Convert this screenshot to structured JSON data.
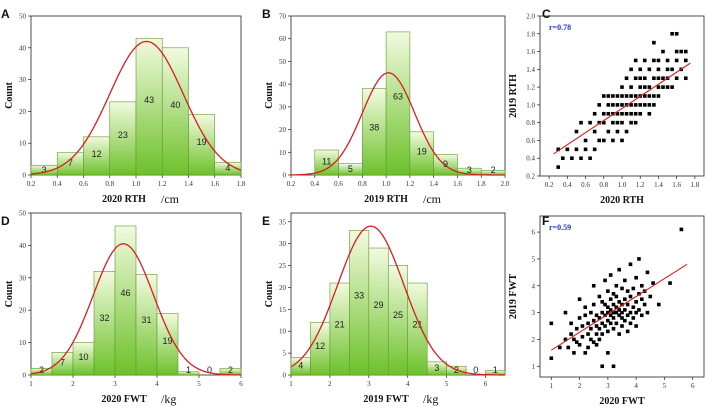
{
  "chart_data": [
    {
      "panel": "A",
      "type": "bar",
      "x": [
        0.3,
        0.5,
        0.7,
        0.9,
        1.1,
        1.3,
        1.5,
        1.7
      ],
      "values": [
        3,
        7,
        12,
        23,
        43,
        40,
        19,
        4
      ],
      "bin_width": 0.2,
      "xlim": [
        0.2,
        1.8
      ],
      "ylim": [
        0,
        50
      ],
      "xticks": [
        "0.2",
        "0.4",
        "0.6",
        "0.8",
        "1.0",
        "1.2",
        "1.4",
        "1.6",
        "1.8"
      ],
      "yticks": [
        "0",
        "10",
        "20",
        "30",
        "40",
        "50"
      ],
      "xlabel": "2020 RTH",
      "unit": "/cm",
      "ylabel": "Count",
      "fit_curve": {
        "mean": 1.08,
        "sd": 0.28,
        "peak": 42
      }
    },
    {
      "panel": "B",
      "type": "bar",
      "x": [
        0.5,
        0.7,
        0.9,
        1.1,
        1.3,
        1.5,
        1.7,
        1.9
      ],
      "values": [
        11,
        5,
        38,
        63,
        19,
        9,
        3,
        2
      ],
      "bin_width": 0.2,
      "xlim": [
        0.2,
        2.0
      ],
      "ylim": [
        0,
        70
      ],
      "xticks": [
        "0.2",
        "0.4",
        "0.6",
        "0.8",
        "1.0",
        "1.2",
        "1.4",
        "1.6",
        "1.8",
        "2.0"
      ],
      "yticks": [
        "0",
        "10",
        "20",
        "30",
        "40",
        "50",
        "60",
        "70"
      ],
      "xlabel": "2019 RTH",
      "unit": "/cm",
      "ylabel": "Count",
      "fit_curve": {
        "mean": 1.02,
        "sd": 0.22,
        "peak": 45
      }
    },
    {
      "panel": "C",
      "type": "scatter",
      "r_text": "r=0.78",
      "xlim": [
        0.1,
        1.9
      ],
      "ylim": [
        0.2,
        2.0
      ],
      "xticks": [
        "0.2",
        "0.4",
        "0.6",
        "0.8",
        "1.0",
        "1.2",
        "1.4",
        "1.6",
        "1.8"
      ],
      "yticks": [
        "0.2",
        "0.4",
        "0.6",
        "0.8",
        "1.0",
        "1.2",
        "1.4",
        "1.6",
        "1.8",
        "2.0"
      ],
      "xlabel": "2020 RTH",
      "ylabel": "2019 RTH",
      "fit_line": [
        [
          0.25,
          0.45
        ],
        [
          1.75,
          1.47
        ]
      ],
      "points": [
        [
          0.3,
          0.3
        ],
        [
          0.3,
          0.5
        ],
        [
          0.35,
          0.4
        ],
        [
          0.4,
          0.5
        ],
        [
          0.45,
          0.4
        ],
        [
          0.5,
          0.5
        ],
        [
          0.5,
          0.7
        ],
        [
          0.55,
          0.4
        ],
        [
          0.55,
          0.8
        ],
        [
          0.6,
          0.5
        ],
        [
          0.6,
          0.6
        ],
        [
          0.65,
          0.4
        ],
        [
          0.65,
          0.8
        ],
        [
          0.7,
          0.5
        ],
        [
          0.7,
          0.7
        ],
        [
          0.7,
          0.9
        ],
        [
          0.75,
          0.6
        ],
        [
          0.75,
          0.8
        ],
        [
          0.75,
          1.0
        ],
        [
          0.8,
          0.6
        ],
        [
          0.8,
          0.8
        ],
        [
          0.8,
          0.9
        ],
        [
          0.8,
          1.1
        ],
        [
          0.85,
          0.7
        ],
        [
          0.85,
          0.9
        ],
        [
          0.85,
          1.0
        ],
        [
          0.85,
          1.1
        ],
        [
          0.9,
          0.6
        ],
        [
          0.9,
          0.8
        ],
        [
          0.9,
          0.9
        ],
        [
          0.9,
          1.0
        ],
        [
          0.9,
          1.1
        ],
        [
          0.95,
          0.7
        ],
        [
          0.95,
          0.8
        ],
        [
          0.95,
          0.9
        ],
        [
          0.95,
          1.0
        ],
        [
          0.95,
          1.1
        ],
        [
          1.0,
          0.6
        ],
        [
          1.0,
          0.8
        ],
        [
          1.0,
          0.9
        ],
        [
          1.0,
          1.0
        ],
        [
          1.0,
          1.1
        ],
        [
          1.0,
          1.2
        ],
        [
          1.05,
          0.7
        ],
        [
          1.05,
          0.9
        ],
        [
          1.05,
          1.0
        ],
        [
          1.05,
          1.1
        ],
        [
          1.05,
          1.3
        ],
        [
          1.1,
          0.8
        ],
        [
          1.1,
          0.9
        ],
        [
          1.1,
          1.0
        ],
        [
          1.1,
          1.1
        ],
        [
          1.1,
          1.2
        ],
        [
          1.1,
          1.4
        ],
        [
          1.15,
          0.8
        ],
        [
          1.15,
          0.9
        ],
        [
          1.15,
          1.0
        ],
        [
          1.15,
          1.1
        ],
        [
          1.15,
          1.3
        ],
        [
          1.15,
          1.5
        ],
        [
          1.2,
          0.9
        ],
        [
          1.2,
          1.0
        ],
        [
          1.2,
          1.1
        ],
        [
          1.2,
          1.2
        ],
        [
          1.2,
          1.3
        ],
        [
          1.2,
          1.4
        ],
        [
          1.25,
          1.0
        ],
        [
          1.25,
          1.1
        ],
        [
          1.25,
          1.2
        ],
        [
          1.25,
          1.3
        ],
        [
          1.25,
          1.5
        ],
        [
          1.3,
          0.9
        ],
        [
          1.3,
          1.0
        ],
        [
          1.3,
          1.1
        ],
        [
          1.3,
          1.2
        ],
        [
          1.3,
          1.4
        ],
        [
          1.35,
          1.0
        ],
        [
          1.35,
          1.1
        ],
        [
          1.35,
          1.3
        ],
        [
          1.35,
          1.5
        ],
        [
          1.35,
          1.7
        ],
        [
          1.4,
          1.1
        ],
        [
          1.4,
          1.2
        ],
        [
          1.4,
          1.3
        ],
        [
          1.4,
          1.4
        ],
        [
          1.4,
          1.5
        ],
        [
          1.45,
          1.2
        ],
        [
          1.45,
          1.3
        ],
        [
          1.45,
          1.6
        ],
        [
          1.5,
          1.2
        ],
        [
          1.5,
          1.3
        ],
        [
          1.5,
          1.4
        ],
        [
          1.5,
          1.5
        ],
        [
          1.55,
          1.2
        ],
        [
          1.55,
          1.4
        ],
        [
          1.55,
          1.8
        ],
        [
          1.6,
          1.3
        ],
        [
          1.6,
          1.5
        ],
        [
          1.6,
          1.6
        ],
        [
          1.6,
          1.8
        ],
        [
          1.65,
          1.4
        ],
        [
          1.65,
          1.6
        ],
        [
          1.7,
          1.3
        ],
        [
          1.7,
          1.5
        ],
        [
          1.7,
          1.6
        ]
      ]
    },
    {
      "panel": "D",
      "type": "bar",
      "x": [
        1.25,
        1.75,
        2.25,
        2.75,
        3.25,
        3.75,
        4.25,
        4.75,
        5.25,
        5.75
      ],
      "values": [
        2,
        7,
        10,
        32,
        46,
        31,
        19,
        1,
        0,
        2
      ],
      "bin_width": 0.5,
      "xlim": [
        1,
        6
      ],
      "ylim": [
        0,
        50
      ],
      "xticks": [
        "1",
        "2",
        "3",
        "4",
        "5",
        "6"
      ],
      "yticks": [
        "0",
        "10",
        "20",
        "30",
        "40",
        "50"
      ],
      "xlabel": "2020 FWT",
      "unit": "/kg",
      "ylabel": "Count",
      "fit_curve": {
        "mean": 3.2,
        "sd": 0.72,
        "peak": 40.5
      }
    },
    {
      "panel": "E",
      "type": "bar",
      "x": [
        1.25,
        1.75,
        2.25,
        2.75,
        3.25,
        3.75,
        4.25,
        4.75,
        5.25,
        5.75,
        6.25
      ],
      "values": [
        4,
        12,
        21,
        33,
        29,
        25,
        21,
        3,
        2,
        0,
        1
      ],
      "bin_width": 0.5,
      "xlim": [
        1,
        6.5
      ],
      "ylim": [
        0,
        37
      ],
      "xticks": [
        "1",
        "2",
        "3",
        "4",
        "5",
        "6"
      ],
      "yticks": [
        "0",
        "5",
        "10",
        "15",
        "20",
        "25",
        "30",
        "35"
      ],
      "xlabel": "2019 FWT",
      "unit": "/kg",
      "ylabel": "Count",
      "fit_curve": {
        "mean": 3.05,
        "sd": 0.85,
        "peak": 34
      }
    },
    {
      "panel": "F",
      "type": "scatter",
      "r_text": "r=0.59",
      "xlim": [
        0.6,
        6.4
      ],
      "ylim": [
        0.6,
        6.6
      ],
      "xticks": [
        "1",
        "2",
        "3",
        "4",
        "5",
        "6"
      ],
      "yticks": [
        "1",
        "2",
        "3",
        "4",
        "5",
        "6"
      ],
      "xlabel": "2020 FWT",
      "ylabel": "2019 FWT",
      "fit_line": [
        [
          1.0,
          1.6
        ],
        [
          5.8,
          4.8
        ]
      ],
      "points": [
        [
          1.0,
          2.6
        ],
        [
          1.0,
          1.3
        ],
        [
          1.3,
          1.7
        ],
        [
          1.5,
          2.0
        ],
        [
          1.5,
          3.0
        ],
        [
          1.6,
          1.7
        ],
        [
          1.7,
          2.2
        ],
        [
          1.7,
          2.6
        ],
        [
          1.8,
          1.5
        ],
        [
          1.8,
          2.0
        ],
        [
          1.9,
          2.4
        ],
        [
          1.9,
          1.9
        ],
        [
          2.0,
          1.8
        ],
        [
          2.0,
          2.8
        ],
        [
          2.0,
          3.5
        ],
        [
          2.1,
          2.1
        ],
        [
          2.1,
          2.5
        ],
        [
          2.2,
          1.5
        ],
        [
          2.2,
          2.9
        ],
        [
          2.2,
          3.2
        ],
        [
          2.3,
          1.7
        ],
        [
          2.3,
          2.2
        ],
        [
          2.3,
          2.6
        ],
        [
          2.4,
          2.0
        ],
        [
          2.4,
          2.4
        ],
        [
          2.4,
          3.0
        ],
        [
          2.5,
          1.9
        ],
        [
          2.5,
          2.7
        ],
        [
          2.5,
          3.3
        ],
        [
          2.5,
          4.0
        ],
        [
          2.6,
          1.8
        ],
        [
          2.6,
          2.2
        ],
        [
          2.6,
          2.5
        ],
        [
          2.6,
          2.9
        ],
        [
          2.7,
          2.0
        ],
        [
          2.7,
          2.4
        ],
        [
          2.7,
          2.8
        ],
        [
          2.7,
          3.6
        ],
        [
          2.8,
          2.2
        ],
        [
          2.8,
          2.6
        ],
        [
          2.8,
          3.0
        ],
        [
          2.8,
          3.4
        ],
        [
          2.8,
          1.0
        ],
        [
          2.9,
          2.5
        ],
        [
          2.9,
          2.9
        ],
        [
          2.9,
          3.3
        ],
        [
          2.9,
          4.2
        ],
        [
          3.0,
          1.5
        ],
        [
          3.0,
          2.3
        ],
        [
          3.0,
          2.7
        ],
        [
          3.0,
          3.0
        ],
        [
          3.0,
          3.2
        ],
        [
          3.0,
          3.8
        ],
        [
          3.1,
          2.6
        ],
        [
          3.1,
          2.9
        ],
        [
          3.1,
          3.1
        ],
        [
          3.1,
          3.5
        ],
        [
          3.1,
          4.4
        ],
        [
          3.2,
          2.4
        ],
        [
          3.2,
          2.8
        ],
        [
          3.2,
          3.0
        ],
        [
          3.2,
          3.3
        ],
        [
          3.2,
          3.7
        ],
        [
          3.2,
          1.0
        ],
        [
          3.3,
          2.6
        ],
        [
          3.3,
          3.0
        ],
        [
          3.3,
          3.2
        ],
        [
          3.3,
          3.6
        ],
        [
          3.3,
          4.0
        ],
        [
          3.4,
          2.2
        ],
        [
          3.4,
          2.9
        ],
        [
          3.4,
          3.1
        ],
        [
          3.4,
          3.4
        ],
        [
          3.4,
          4.6
        ],
        [
          3.5,
          2.5
        ],
        [
          3.5,
          2.8
        ],
        [
          3.5,
          3.0
        ],
        [
          3.5,
          3.3
        ],
        [
          3.5,
          3.9
        ],
        [
          3.6,
          2.7
        ],
        [
          3.6,
          3.1
        ],
        [
          3.6,
          3.5
        ],
        [
          3.6,
          4.2
        ],
        [
          3.7,
          2.3
        ],
        [
          3.7,
          2.9
        ],
        [
          3.7,
          3.3
        ],
        [
          3.7,
          3.8
        ],
        [
          3.8,
          2.6
        ],
        [
          3.8,
          3.0
        ],
        [
          3.8,
          3.6
        ],
        [
          3.8,
          4.8
        ],
        [
          3.9,
          2.8
        ],
        [
          3.9,
          3.2
        ],
        [
          3.9,
          3.9
        ],
        [
          4.0,
          2.5
        ],
        [
          4.0,
          3.0
        ],
        [
          4.0,
          3.4
        ],
        [
          4.0,
          4.3
        ],
        [
          4.1,
          3.1
        ],
        [
          4.1,
          3.7
        ],
        [
          4.1,
          5.0
        ],
        [
          4.2,
          2.9
        ],
        [
          4.2,
          3.5
        ],
        [
          4.2,
          4.0
        ],
        [
          4.3,
          3.3
        ],
        [
          4.3,
          3.8
        ],
        [
          4.4,
          3.0
        ],
        [
          4.4,
          4.5
        ],
        [
          4.5,
          3.6
        ],
        [
          4.6,
          4.1
        ],
        [
          4.8,
          3.3
        ],
        [
          5.2,
          4.1
        ],
        [
          5.6,
          6.1
        ]
      ]
    }
  ]
}
